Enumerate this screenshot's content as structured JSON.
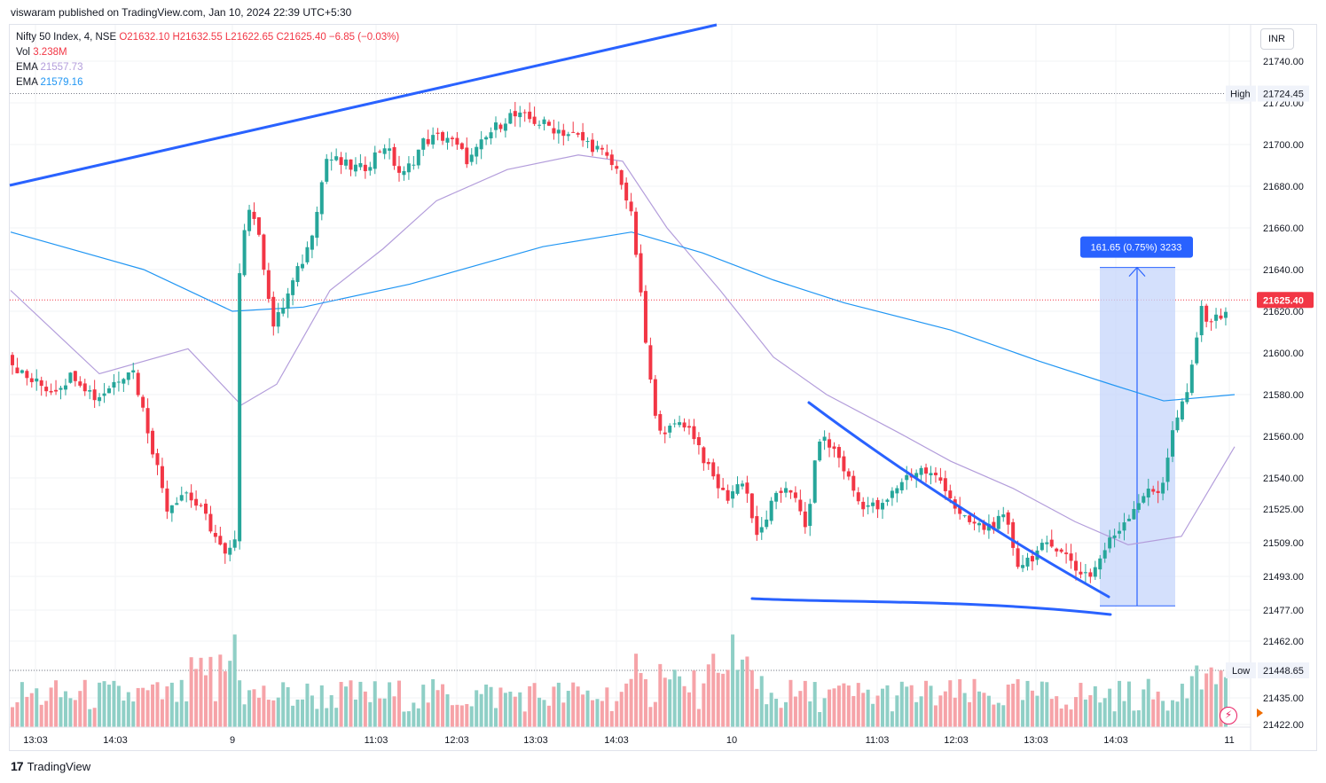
{
  "header": {
    "publisher": "viswaram published on TradingView.com, Jan 10, 2024 22:39 UTC+5:30"
  },
  "legend": {
    "symbol": "Nifty 50 Index, 4, NSE",
    "ohlc": "O21632.10  H21632.55  L21622.65  C21625.40  −6.85 (−0.03%)",
    "vol_label": "Vol",
    "vol_value": "3.238M",
    "ema1_label": "EMA",
    "ema1_value": "21557.73",
    "ema2_label": "EMA",
    "ema2_value": "21579.16"
  },
  "currency": "INR",
  "brand": "TradingView",
  "icons": {
    "brand": "tradingview-logo-icon",
    "flash": "lightning-icon",
    "scroll": "play-icon"
  },
  "colors": {
    "up": "#26a69a",
    "down": "#f23645",
    "up_vol": "#8fcfc6",
    "down_vol": "#f6a3a8",
    "ema_fast": "#b39ddb",
    "ema_slow": "#2196f3",
    "drawing": "#2962ff",
    "measure_fill": "#c5d5fb",
    "label_bg": "#2962ff"
  },
  "chart_data": {
    "type": "candlestick",
    "y_ticks": [
      "21740.00",
      "21720.00",
      "21700.00",
      "21680.00",
      "21660.00",
      "21640.00",
      "21620.00",
      "21600.00",
      "21580.00",
      "21560.00",
      "21540.00",
      "21525.00",
      "21509.00",
      "21493.00",
      "21477.00",
      "21462.00",
      "21448.65",
      "21435.00",
      "21422.00"
    ],
    "y_tick_values": [
      21740,
      21720,
      21700,
      21680,
      21660,
      21640,
      21620,
      21600,
      21580,
      21560,
      21540,
      21525,
      21509,
      21493,
      21477,
      21462,
      21448.65,
      21435,
      21422
    ],
    "x_ticks": [
      "13:03",
      "14:03",
      "9",
      "11:03",
      "12:03",
      "13:03",
      "14:03",
      "10",
      "11:03",
      "12:03",
      "13:03",
      "14:03",
      "11"
    ],
    "high_label": "High",
    "high_value": "21724.45",
    "low_label": "Low",
    "low_value": "21448.65",
    "last_price": "21625.40",
    "measure_label": "161.65 (0.75%) 3233",
    "ema_fast_anchor": [
      [
        0,
        21630
      ],
      [
        100,
        21590
      ],
      [
        200,
        21602
      ],
      [
        260,
        21575
      ],
      [
        300,
        21585
      ],
      [
        360,
        21630
      ],
      [
        420,
        21650
      ],
      [
        480,
        21673
      ],
      [
        560,
        21688
      ],
      [
        640,
        21695
      ],
      [
        690,
        21692
      ],
      [
        740,
        21660
      ],
      [
        800,
        21630
      ],
      [
        860,
        21598
      ],
      [
        920,
        21580
      ],
      [
        1000,
        21562
      ],
      [
        1060,
        21548
      ],
      [
        1130,
        21535
      ],
      [
        1200,
        21519
      ],
      [
        1260,
        21508
      ],
      [
        1320,
        21512
      ],
      [
        1380,
        21555
      ]
    ],
    "ema_slow_anchor": [
      [
        0,
        21658
      ],
      [
        150,
        21640
      ],
      [
        250,
        21620
      ],
      [
        330,
        21622
      ],
      [
        450,
        21633
      ],
      [
        600,
        21651
      ],
      [
        700,
        21658
      ],
      [
        780,
        21648
      ],
      [
        860,
        21635
      ],
      [
        940,
        21624
      ],
      [
        1060,
        21611
      ],
      [
        1160,
        21596
      ],
      [
        1240,
        21585
      ],
      [
        1300,
        21577
      ],
      [
        1380,
        21580
      ]
    ]
  }
}
